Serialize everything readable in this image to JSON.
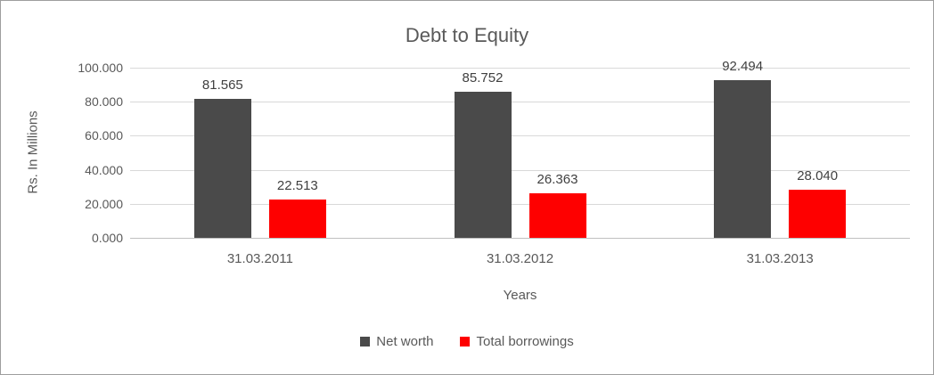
{
  "chart_data": {
    "type": "bar",
    "title": "Debt to Equity",
    "xlabel": "Years",
    "ylabel": "Rs. In Millions",
    "categories": [
      "31.03.2011",
      "31.03.2012",
      "31.03.2013"
    ],
    "series": [
      {
        "name": "Net worth",
        "color": "#4a4a4a",
        "values": [
          81.565,
          85.752,
          92.494
        ]
      },
      {
        "name": "Total borrowings",
        "color": "#fe0000",
        "values": [
          22.513,
          26.363,
          28.04
        ]
      }
    ],
    "ylim": [
      0,
      100
    ],
    "yticks": [
      "0.000",
      "20.000",
      "40.000",
      "60.000",
      "80.000",
      "100.000"
    ],
    "grid": true,
    "legend_position": "bottom",
    "value_label_decimals": 3
  }
}
